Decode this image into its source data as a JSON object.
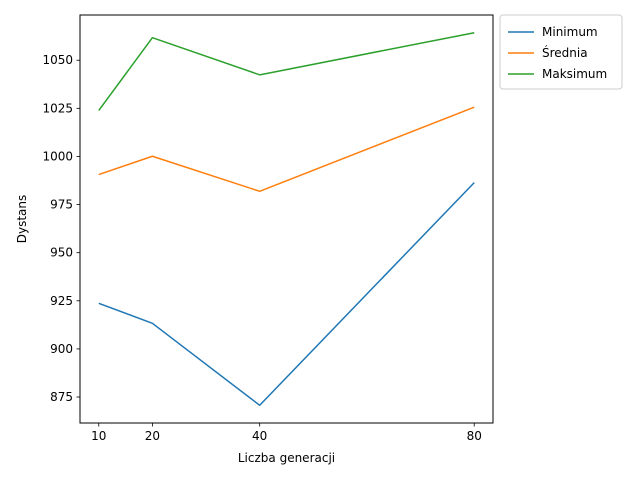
{
  "chart_data": {
    "type": "line",
    "title": "",
    "xlabel": "Liczba generacji",
    "ylabel": "Dystans",
    "x": [
      10,
      20,
      40,
      80
    ],
    "xticks": [
      10,
      20,
      40,
      80
    ],
    "yticks": [
      875,
      900,
      925,
      950,
      975,
      1000,
      1025,
      1050
    ],
    "xlim": [
      6.5,
      83.5
    ],
    "ylim": [
      861.5,
      1073.5
    ],
    "grid": false,
    "legend_position": "outside-top-right",
    "series": [
      {
        "name": "Minimum",
        "color": "#1f77b4",
        "values": [
          923.7,
          913.3,
          870.7,
          986.4
        ]
      },
      {
        "name": "Średnia",
        "color": "#ff7f0e",
        "values": [
          990.6,
          1000.1,
          981.9,
          1025.6
        ]
      },
      {
        "name": "Maksimum",
        "color": "#2ca02c",
        "values": [
          1023.9,
          1061.7,
          1042.4,
          1064.3
        ]
      }
    ]
  }
}
